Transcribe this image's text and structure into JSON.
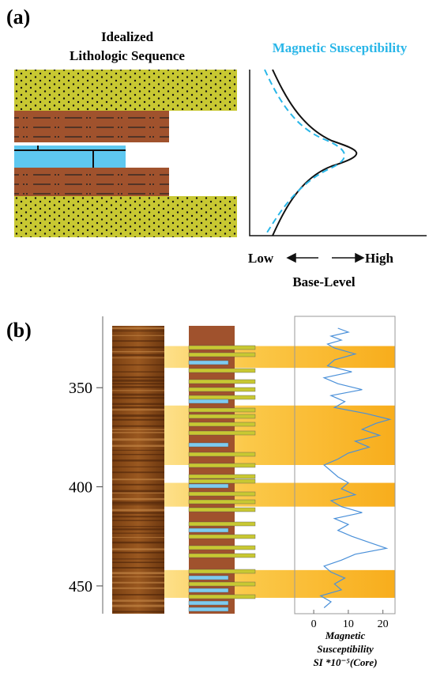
{
  "labels": {
    "a": "(a)",
    "b": "(b)"
  },
  "panel_a": {
    "column_title_1": "Idealized",
    "column_title_2": "Lithologic Sequence",
    "curve_title": "Magnetic Susceptibility",
    "low": "Low",
    "high": "High",
    "axis_label": "Base-Level"
  },
  "chart_data": {
    "type": "line",
    "xlabel_1": "Magnetic",
    "xlabel_2": "Susceptibility",
    "xlabel_3": "SI *10⁻⁵(Core)",
    "x": [
      320,
      322,
      324,
      326,
      328,
      330,
      333,
      336,
      339,
      342,
      345,
      348,
      351,
      354,
      357,
      360,
      363,
      366,
      368,
      371,
      374,
      377,
      380,
      383,
      386,
      389,
      392,
      395,
      398,
      401,
      404,
      407,
      410,
      413,
      416,
      419,
      422,
      425,
      428,
      431,
      434,
      437,
      440,
      443,
      446,
      449,
      452,
      455,
      458,
      461
    ],
    "values": [
      7,
      10,
      5,
      8,
      4,
      6,
      12,
      6,
      4,
      11,
      3,
      7,
      14,
      5,
      9,
      6,
      15,
      22,
      18,
      14,
      19,
      12,
      16,
      10,
      7,
      3,
      5,
      7,
      10,
      8,
      12,
      5,
      8,
      14,
      6,
      10,
      7,
      11,
      16,
      21,
      12,
      8,
      3,
      5,
      9,
      6,
      8,
      2,
      5,
      3
    ],
    "color": "#4a90d9",
    "bands": [
      [
        329,
        340
      ],
      [
        359,
        389
      ],
      [
        398,
        410
      ],
      [
        442,
        456
      ]
    ],
    "ylim": [
      318,
      464
    ],
    "yticks": [
      350,
      400,
      450
    ],
    "xlim": [
      -5.5,
      23.5
    ],
    "xticks": [
      0,
      10,
      20
    ]
  }
}
